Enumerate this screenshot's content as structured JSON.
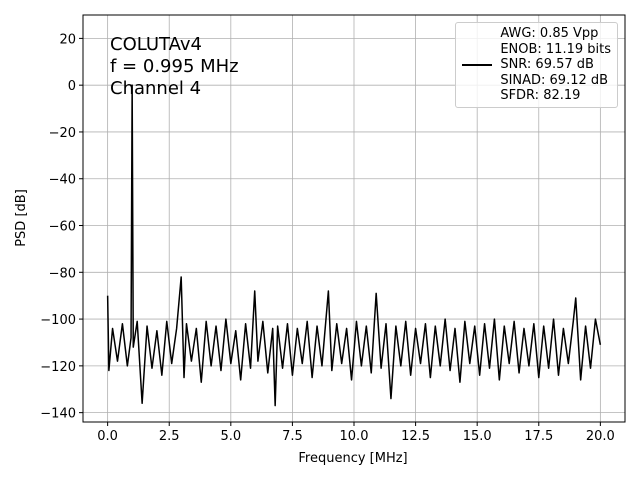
{
  "chart_data": {
    "type": "line",
    "xlabel": "Frequency [MHz]",
    "ylabel": "PSD [dB]",
    "annotations": [
      "COLUTAv4",
      "f = 0.995 MHz",
      "Channel 4"
    ],
    "legend": "upper right",
    "grid": true,
    "xlim": [
      -1,
      21
    ],
    "ylim": [
      -144,
      30
    ],
    "xticks": [
      {
        "value": 0,
        "label": "0.0"
      },
      2.5,
      {
        "value": 5,
        "label": "5.0"
      },
      7.5,
      {
        "value": 10,
        "label": "10.0"
      },
      12.5,
      {
        "value": 15,
        "label": "15.0"
      },
      17.5,
      {
        "value": 20,
        "label": "20.0"
      }
    ],
    "yticks": [
      {
        "value": -140,
        "label": "−140"
      },
      {
        "value": -120,
        "label": "−120"
      },
      {
        "value": -100,
        "label": "−100"
      },
      {
        "value": -80,
        "label": "−80"
      },
      {
        "value": -60,
        "label": "−60"
      },
      {
        "value": -40,
        "label": "−40"
      },
      {
        "value": -20,
        "label": "−20"
      },
      0,
      20
    ],
    "x": [
      0,
      0.05,
      0.2,
      0.4,
      0.6,
      0.8,
      0.95,
      0.995,
      1.04,
      1.2,
      1.4,
      1.6,
      1.8,
      2.0,
      2.2,
      2.4,
      2.6,
      2.8,
      2.985,
      3.1,
      3.2,
      3.4,
      3.6,
      3.8,
      4.0,
      4.2,
      4.4,
      4.6,
      4.8,
      5.0,
      5.2,
      5.4,
      5.6,
      5.8,
      5.97,
      6.1,
      6.3,
      6.5,
      6.7,
      6.8,
      6.9,
      7.1,
      7.3,
      7.5,
      7.7,
      7.9,
      8.1,
      8.3,
      8.5,
      8.7,
      8.96,
      9.1,
      9.3,
      9.5,
      9.7,
      9.9,
      10.1,
      10.3,
      10.5,
      10.7,
      10.9,
      11.1,
      11.3,
      11.5,
      11.7,
      11.9,
      12.1,
      12.3,
      12.5,
      12.7,
      12.9,
      13.1,
      13.3,
      13.5,
      13.7,
      13.9,
      14.1,
      14.3,
      14.5,
      14.7,
      14.9,
      15.1,
      15.3,
      15.5,
      15.7,
      15.9,
      16.1,
      16.3,
      16.5,
      16.7,
      16.9,
      17.1,
      17.3,
      17.5,
      17.7,
      17.9,
      18.1,
      18.3,
      18.5,
      18.7,
      18.9,
      19.0,
      19.2,
      19.4,
      19.6,
      19.8,
      20.0
    ],
    "series": [
      {
        "name": "AWG: 0.85 Vpp\nENOB: 11.19 bits\nSNR: 69.57 dB\nSINAD: 69.12 dB\nSFDR: 82.19",
        "color": "#000000",
        "values": [
          -90,
          -122,
          -104,
          -118,
          -102,
          -120,
          -108,
          0,
          -112,
          -101,
          -136,
          -103,
          -121,
          -105,
          -124,
          -101,
          -119,
          -104,
          -82,
          -125,
          -102,
          -118,
          -104,
          -127,
          -101,
          -120,
          -103,
          -122,
          -100,
          -119,
          -105,
          -126,
          -102,
          -121,
          -88,
          -118,
          -101,
          -123,
          -104,
          -137,
          -103,
          -121,
          -102,
          -124,
          -104,
          -119,
          -101,
          -125,
          -103,
          -120,
          -88,
          -122,
          -102,
          -119,
          -104,
          -126,
          -101,
          -120,
          -103,
          -123,
          -89,
          -121,
          -102,
          -134,
          -103,
          -120,
          -101,
          -124,
          -104,
          -119,
          -102,
          -125,
          -103,
          -120,
          -100,
          -122,
          -104,
          -127,
          -101,
          -119,
          -103,
          -124,
          -102,
          -121,
          -100,
          -126,
          -103,
          -119,
          -101,
          -123,
          -104,
          -120,
          -102,
          -125,
          -103,
          -121,
          -100,
          -124,
          -104,
          -119,
          -101,
          -91,
          -126,
          -103,
          -121,
          -100,
          -111
        ]
      }
    ]
  }
}
